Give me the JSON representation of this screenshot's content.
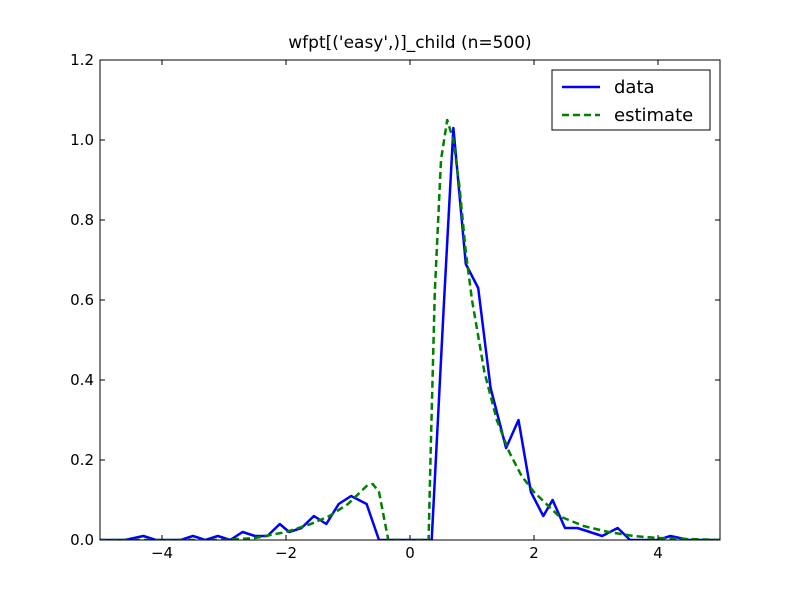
{
  "chart_data": {
    "type": "line",
    "title": "wfpt[('easy',)]_child (n=500)",
    "xlabel": "",
    "ylabel": "",
    "xlim": [
      -5,
      5
    ],
    "ylim": [
      0,
      1.2
    ],
    "xticks": [
      -4,
      -2,
      0,
      2,
      4
    ],
    "xtick_labels": [
      "−4",
      "−2",
      "0",
      "2",
      "4"
    ],
    "yticks": [
      0.0,
      0.2,
      0.4,
      0.6,
      0.8,
      1.0,
      1.2
    ],
    "ytick_labels": [
      "0.0",
      "0.2",
      "0.4",
      "0.6",
      "0.8",
      "1.0",
      "1.2"
    ],
    "grid": false,
    "legend_position": "top-right",
    "series": [
      {
        "name": "data",
        "color": "#0000ff",
        "style": "solid",
        "x": [
          -5.0,
          -4.6,
          -4.3,
          -4.1,
          -3.7,
          -3.5,
          -3.3,
          -3.1,
          -2.9,
          -2.7,
          -2.5,
          -2.3,
          -2.1,
          -1.95,
          -1.75,
          -1.55,
          -1.35,
          -1.15,
          -0.95,
          -0.7,
          -0.5,
          -0.35,
          -0.05,
          0.35,
          0.55,
          0.7,
          0.9,
          1.1,
          1.3,
          1.55,
          1.75,
          1.95,
          2.15,
          2.3,
          2.5,
          2.7,
          2.9,
          3.1,
          3.35,
          3.55,
          3.8,
          4.0,
          4.2,
          4.5,
          5.0
        ],
        "y": [
          0.0,
          0.0,
          0.01,
          0.0,
          0.0,
          0.01,
          0.0,
          0.01,
          0.0,
          0.02,
          0.01,
          0.01,
          0.04,
          0.02,
          0.03,
          0.06,
          0.04,
          0.09,
          0.11,
          0.09,
          0.0,
          0.0,
          0.0,
          0.0,
          0.6,
          1.03,
          0.69,
          0.63,
          0.38,
          0.23,
          0.3,
          0.12,
          0.06,
          0.1,
          0.03,
          0.03,
          0.02,
          0.01,
          0.03,
          0.0,
          0.0,
          0.0,
          0.01,
          0.0,
          0.0
        ]
      },
      {
        "name": "estimate",
        "color": "#008000",
        "style": "dashed",
        "x": [
          -5.0,
          -4.0,
          -3.0,
          -2.5,
          -2.0,
          -1.6,
          -1.3,
          -1.0,
          -0.8,
          -0.7,
          -0.6,
          -0.5,
          -0.45,
          -0.35,
          0.3,
          0.33,
          0.4,
          0.5,
          0.6,
          0.7,
          0.8,
          0.9,
          1.0,
          1.2,
          1.4,
          1.6,
          1.8,
          2.0,
          2.4,
          2.8,
          3.2,
          3.6,
          4.0,
          5.0
        ],
        "y": [
          0.0,
          0.0,
          0.0,
          0.005,
          0.02,
          0.04,
          0.06,
          0.09,
          0.12,
          0.135,
          0.14,
          0.12,
          0.08,
          0.0,
          0.0,
          0.2,
          0.62,
          0.95,
          1.05,
          1.0,
          0.88,
          0.72,
          0.6,
          0.42,
          0.3,
          0.22,
          0.16,
          0.12,
          0.06,
          0.035,
          0.02,
          0.01,
          0.005,
          0.0
        ]
      }
    ]
  }
}
